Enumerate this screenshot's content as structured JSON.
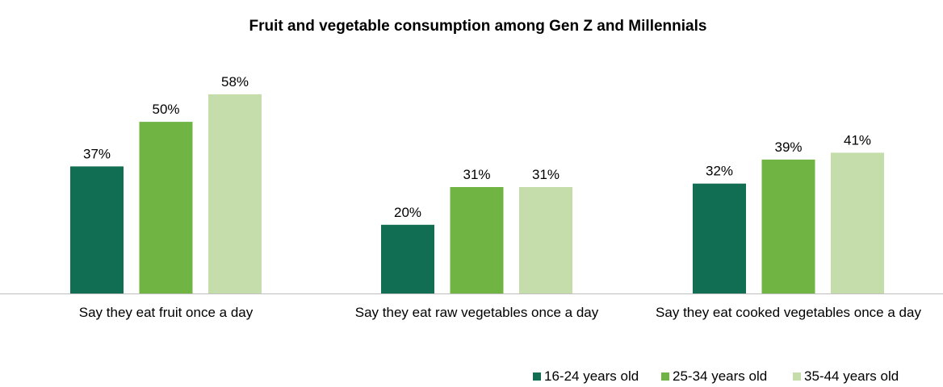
{
  "chart_data": {
    "type": "bar",
    "title": "Fruit and vegetable consumption among Gen Z and Millennials",
    "categories": [
      "Say they eat fruit once a day",
      "Say they eat raw vegetables once a day",
      "Say they eat cooked vegetables once a day"
    ],
    "series": [
      {
        "name": "16-24 years old",
        "values": [
          37,
          20,
          32
        ],
        "color": "#116e52"
      },
      {
        "name": "25-34 years old",
        "values": [
          50,
          31,
          39
        ],
        "color": "#70b444"
      },
      {
        "name": "35-44 years old",
        "values": [
          58,
          31,
          41
        ],
        "color": "#c4ddaa"
      }
    ],
    "value_suffix": "%",
    "ylim": [
      0,
      60
    ],
    "grid": false,
    "legend_position": "bottom-right",
    "data_labels": true
  }
}
